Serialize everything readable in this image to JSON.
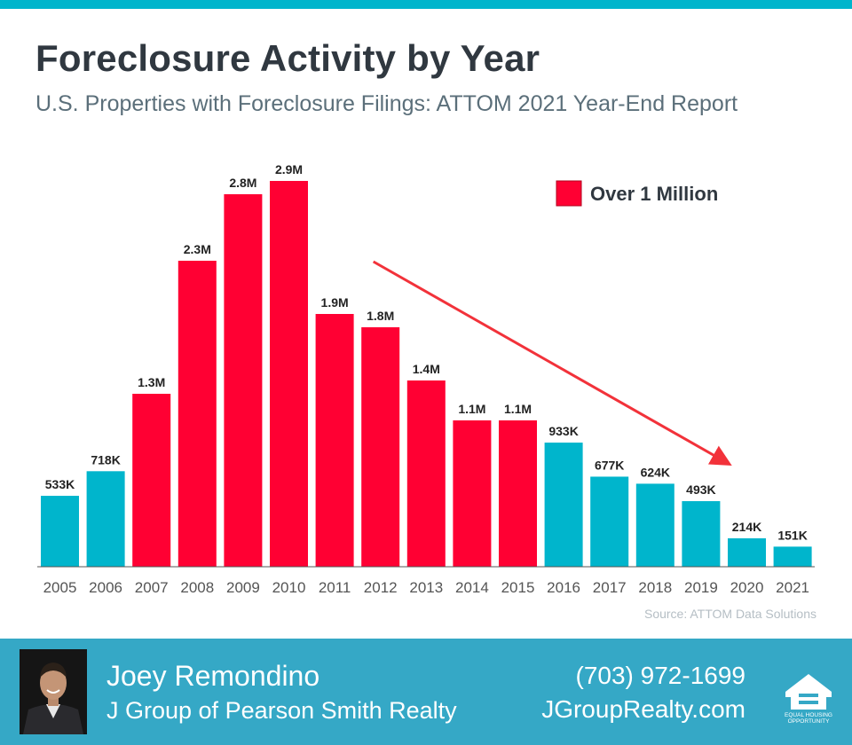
{
  "header": {
    "title": "Foreclosure Activity by Year",
    "subtitle": "U.S. Properties with Foreclosure Filings: ATTOM 2021 Year-End Report"
  },
  "chart_data": {
    "type": "bar",
    "categories": [
      "2005",
      "2006",
      "2007",
      "2008",
      "2009",
      "2010",
      "2011",
      "2012",
      "2013",
      "2014",
      "2015",
      "2016",
      "2017",
      "2018",
      "2019",
      "2020",
      "2021"
    ],
    "values": [
      533000,
      718000,
      1300000,
      2300000,
      2800000,
      2900000,
      1900000,
      1800000,
      1400000,
      1100000,
      1100000,
      933000,
      677000,
      624000,
      493000,
      214000,
      151000
    ],
    "labels": [
      "533K",
      "718K",
      "1.3M",
      "2.3M",
      "2.8M",
      "2.9M",
      "1.9M",
      "1.8M",
      "1.4M",
      "1.1M",
      "1.1M",
      "933K",
      "677K",
      "624K",
      "493K",
      "214K",
      "151K"
    ],
    "highlighted": [
      false,
      false,
      true,
      true,
      true,
      true,
      true,
      true,
      true,
      true,
      true,
      false,
      false,
      false,
      false,
      false,
      false
    ],
    "colors": {
      "highlight": "#ff0033",
      "normal": "#00b5cc",
      "trend_arrow": "#f2323a"
    },
    "legend": {
      "label": "Over 1 Million",
      "placement": "top-right"
    },
    "trend_arrow": {
      "from_category": "2012",
      "to_category": "2020",
      "direction": "down"
    },
    "xlabel": "",
    "ylabel": "",
    "ylim": [
      0,
      3000000
    ],
    "grid": false
  },
  "source": "Source: ATTOM Data Solutions",
  "footer": {
    "agent_name": "Joey Remondino",
    "company": "J Group of Pearson Smith Realty",
    "phone": "(703) 972-1699",
    "website": "JGroupRealty.com",
    "logo_text_line1": "EQUAL HOUSING",
    "logo_text_line2": "OPPORTUNITY",
    "background": "#35a8c6"
  }
}
